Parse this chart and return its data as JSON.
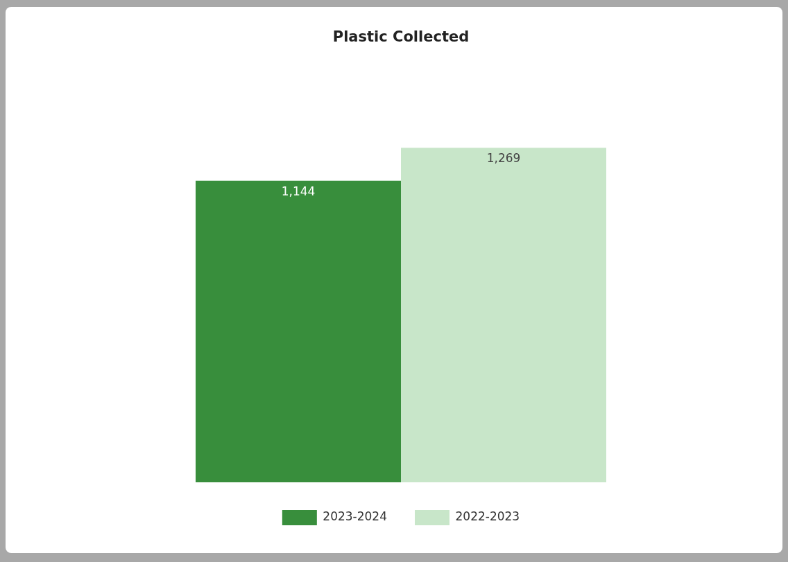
{
  "chart_data": {
    "type": "bar",
    "title": "Plastic Collected",
    "categories": [
      null
    ],
    "series": [
      {
        "name": "2023-2024",
        "color": "#388e3c",
        "values": [
          1144
        ],
        "value_labels": [
          "1,144"
        ]
      },
      {
        "name": "2022-2023",
        "color": "#c8e6c9",
        "values": [
          1269
        ],
        "value_labels": [
          "1,269"
        ]
      }
    ],
    "legend": "bottom"
  }
}
